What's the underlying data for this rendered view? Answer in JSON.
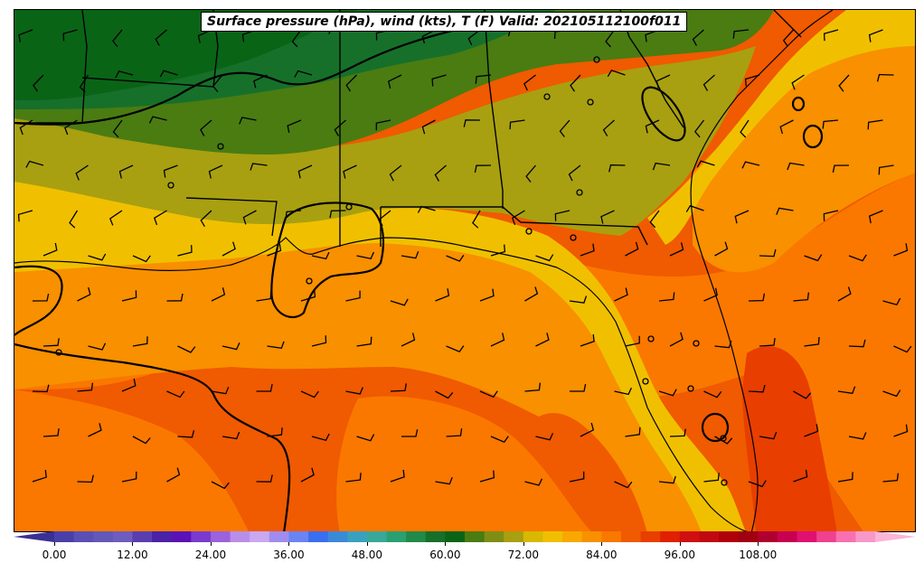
{
  "title": "Surface pressure (hPa), wind (kts), T (F) Valid: 202105112100f011",
  "colorbar": {
    "ticks": [
      "0.00",
      "12.00",
      "24.00",
      "36.00",
      "48.00",
      "60.00",
      "72.00",
      "84.00",
      "96.00",
      "108.00"
    ],
    "colors": [
      "#4a3fa8",
      "#5a4fb4",
      "#6358b8",
      "#6f5cbf",
      "#5a3eb0",
      "#4a22a8",
      "#5a12b8",
      "#7a3ad0",
      "#9a62dc",
      "#b98ee8",
      "#c9a8f0",
      "#a08cf0",
      "#6a84f4",
      "#3a6ef0",
      "#3a8ad8",
      "#3aa0c0",
      "#3aa898",
      "#2aa070",
      "#228a48",
      "#16702a",
      "#0a6416",
      "#4a7c12",
      "#7e8e14",
      "#a8a010",
      "#d8b800",
      "#f0c000",
      "#f8a800",
      "#f89000",
      "#f87800",
      "#f05a00",
      "#e83e00",
      "#e02000",
      "#d01010",
      "#c00a10",
      "#b0000a",
      "#a00010",
      "#b00030",
      "#c80050",
      "#e01070",
      "#f04090",
      "#f870b0",
      "#f898c8"
    ],
    "extend_min_color": "#3a3094",
    "extend_max_color": "#fcb4d8"
  }
}
